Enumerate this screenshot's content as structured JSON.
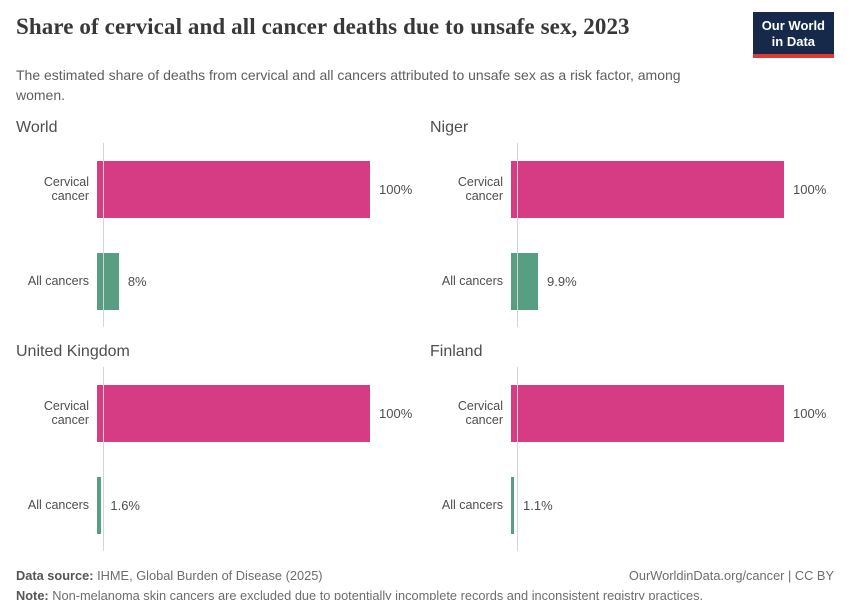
{
  "header": {
    "title": "Share of cervical and all cancer deaths due to unsafe sex, 2023",
    "subtitle": "The estimated share of deaths from cervical and all cancers attributed to unsafe sex as a risk factor, among women.",
    "logo": {
      "line1": "Our World",
      "line2": "in Data"
    }
  },
  "chart_data": {
    "type": "bar",
    "orientation": "horizontal",
    "unit": "%",
    "xlim": [
      0,
      100
    ],
    "grid": false,
    "categories": [
      "Cervical cancer",
      "All cancers"
    ],
    "colors": {
      "cervical_cancer": "#d63c84",
      "all_cancers": "#579e83"
    },
    "panels": [
      {
        "title": "World",
        "values": [
          100,
          8
        ],
        "value_labels": [
          "100%",
          "8%"
        ]
      },
      {
        "title": "Niger",
        "values": [
          100,
          9.9
        ],
        "value_labels": [
          "100%",
          "9.9%"
        ]
      },
      {
        "title": "United Kingdom",
        "values": [
          100,
          1.6
        ],
        "value_labels": [
          "100%",
          "1.6%"
        ]
      },
      {
        "title": "Finland",
        "values": [
          100,
          1.1
        ],
        "value_labels": [
          "100%",
          "1.1%"
        ]
      }
    ]
  },
  "footer": {
    "datasource_label": "Data source:",
    "datasource_text": "IHME, Global Burden of Disease (2025)",
    "note_label": "Note:",
    "note_text": "Non-melanoma skin cancers are excluded due to potentially incomplete records and inconsistent registry practices.",
    "link": "OurWorldinData.org/cancer | CC BY"
  }
}
